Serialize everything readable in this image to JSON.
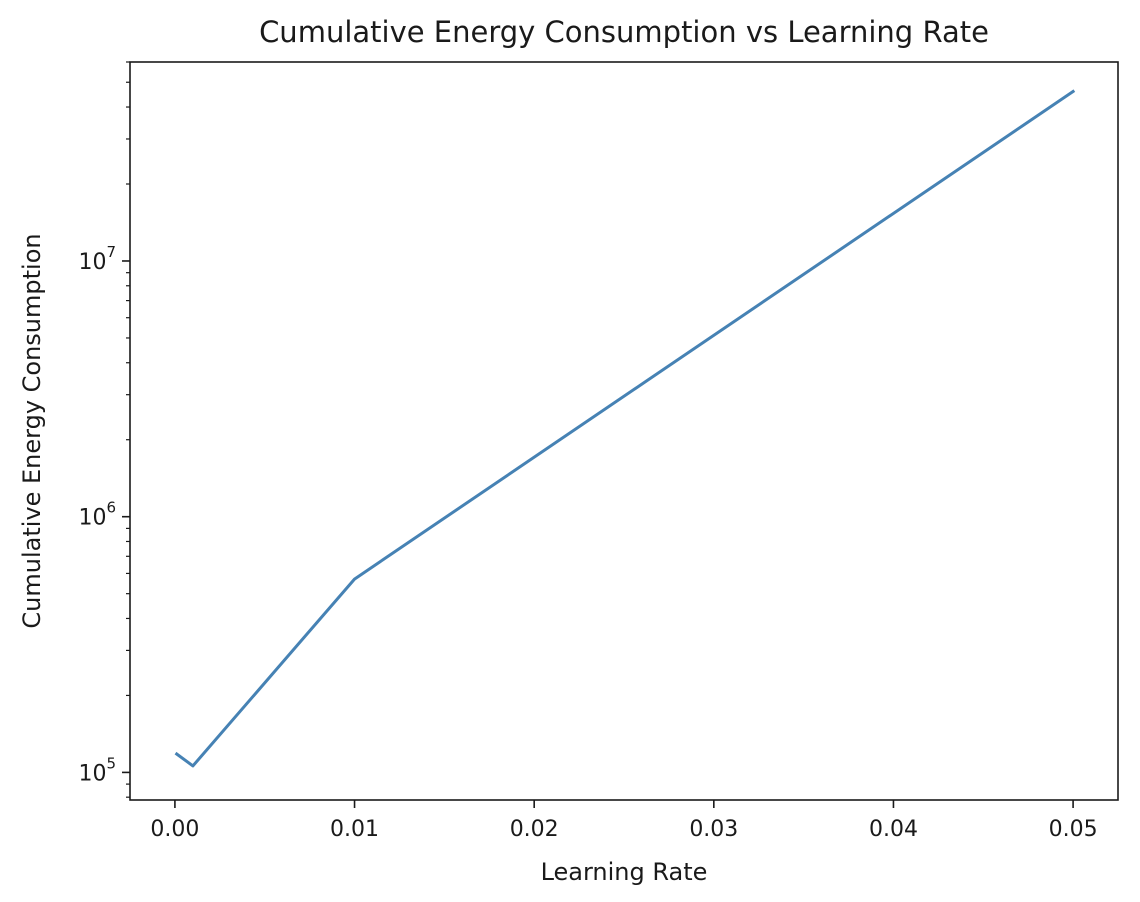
{
  "chart_data": {
    "type": "line",
    "title": "Cumulative Energy Consumption vs Learning Rate",
    "xlabel": "Learning Rate",
    "ylabel": "Cumulative Energy Consumption",
    "yscale": "log",
    "grid": false,
    "xlim": [
      -0.0025,
      0.0525
    ],
    "ylim": [
      78000,
      60000000
    ],
    "x_ticks": [
      {
        "value": 0.0,
        "label": "0.00"
      },
      {
        "value": 0.01,
        "label": "0.01"
      },
      {
        "value": 0.02,
        "label": "0.02"
      },
      {
        "value": 0.03,
        "label": "0.03"
      },
      {
        "value": 0.04,
        "label": "0.04"
      },
      {
        "value": 0.05,
        "label": "0.05"
      }
    ],
    "y_ticks": [
      {
        "value": 100000,
        "base": "10",
        "exp": "5"
      },
      {
        "value": 1000000,
        "base": "10",
        "exp": "6"
      },
      {
        "value": 10000000,
        "base": "10",
        "exp": "7"
      }
    ],
    "series": [
      {
        "color": "#4682b4",
        "x": [
          0.0001,
          0.001,
          0.01,
          0.05
        ],
        "y": [
          118000,
          106000,
          570000,
          46000000
        ]
      }
    ]
  }
}
